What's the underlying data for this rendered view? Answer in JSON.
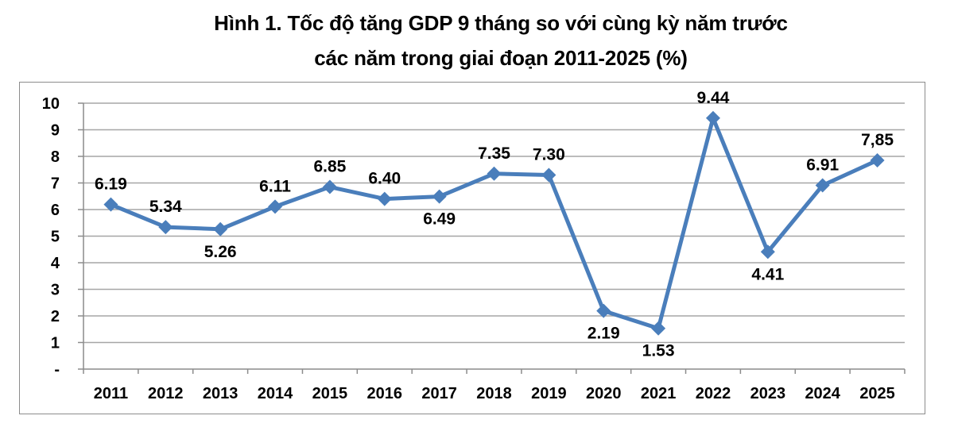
{
  "chart_data": {
    "type": "line",
    "title": "Hình 1. Tốc độ tăng GDP 9 tháng so với cùng kỳ năm trước các năm trong giai đoạn 2011-2025 (%)",
    "title_lines": [
      "Hình 1. Tốc độ tăng GDP 9 tháng so với cùng kỳ năm trước",
      "các năm trong giai đoạn 2011-2025 (%)"
    ],
    "xlabel": "",
    "ylabel": "",
    "categories": [
      "2011",
      "2012",
      "2013",
      "2014",
      "2015",
      "2016",
      "2017",
      "2018",
      "2019",
      "2020",
      "2021",
      "2022",
      "2023",
      "2024",
      "2025"
    ],
    "series": [
      {
        "name": "Tốc độ tăng GDP 9 tháng (%)",
        "values": [
          6.19,
          5.34,
          5.26,
          6.11,
          6.85,
          6.4,
          6.49,
          7.35,
          7.3,
          2.19,
          1.53,
          9.44,
          4.41,
          6.91,
          7.85
        ],
        "data_labels": [
          "6.19",
          "5.34",
          "5.26",
          "6.11",
          "6.85",
          "6.40",
          "6.49",
          "7.35",
          "7.30",
          "2.19",
          "1.53",
          "9.44",
          "4.41",
          "6.91",
          "7,85"
        ],
        "label_positions": [
          "above",
          "above",
          "below",
          "above",
          "above",
          "above",
          "below",
          "above",
          "above",
          "below",
          "below",
          "above",
          "below",
          "above",
          "above"
        ],
        "color": "#4a7ebb",
        "marker": "diamond"
      }
    ],
    "ylim": [
      0,
      10
    ],
    "yticks": [
      0,
      1,
      2,
      3,
      4,
      5,
      6,
      7,
      8,
      9,
      10
    ],
    "ytick_labels": [
      "-",
      "1",
      "2",
      "3",
      "4",
      "5",
      "6",
      "7",
      "8",
      "9",
      "10"
    ],
    "grid": true,
    "grid_color": "#a6a6a6",
    "legend": "none"
  }
}
